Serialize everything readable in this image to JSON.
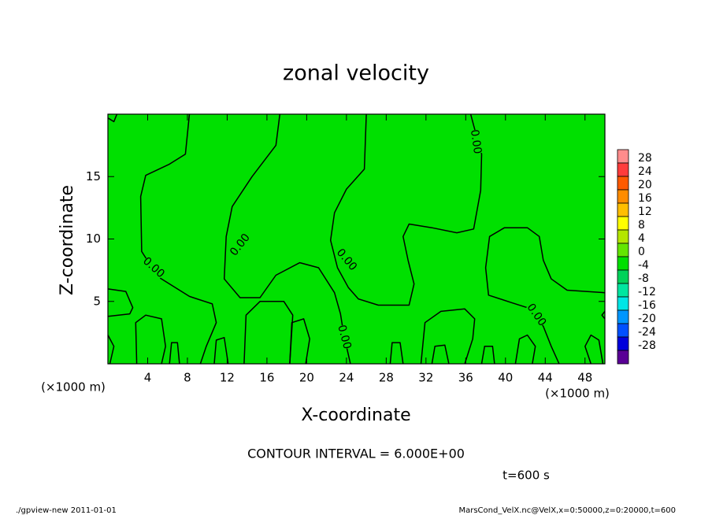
{
  "chart_data": {
    "type": "contour",
    "title": "zonal velocity",
    "xlabel": "X-coordinate",
    "ylabel": "Z-coordinate",
    "x_unit_labels": [
      "(×1000 m)",
      "(×1000 m)"
    ],
    "xlim": [
      0,
      50
    ],
    "xticks": [
      4,
      8,
      12,
      16,
      20,
      24,
      28,
      32,
      36,
      40,
      44,
      48
    ],
    "ylim": [
      0,
      20
    ],
    "yticks": [
      5,
      10,
      15
    ],
    "fill_color": "#00e000",
    "line_color": "#000000",
    "contours": [
      {
        "x": [
          8.2,
          7.8,
          6.2,
          3.8,
          3.3,
          3.4,
          5.0,
          8.2,
          10.5,
          10.9,
          9.9,
          9.3
        ],
        "y": [
          20,
          16.8,
          16.0,
          15.1,
          13.4,
          9.0,
          7.0,
          5.4,
          4.8,
          3.3,
          1.4,
          0
        ]
      },
      {
        "x": [
          17.3,
          16.9,
          14.5,
          12.5,
          11.9,
          11.7,
          13.3,
          15.3,
          16.9,
          19.3,
          21.2,
          22.8,
          23.4,
          23.6,
          24.0,
          24.4
        ],
        "y": [
          20,
          17.5,
          15.0,
          12.6,
          10.2,
          6.8,
          5.3,
          5.3,
          7.1,
          8.1,
          7.7,
          5.7,
          4.0,
          3.0,
          1.4,
          0
        ]
      },
      {
        "x": [
          26.0,
          25.8,
          24.0,
          22.8,
          22.4,
          23.1,
          24.2,
          25.2,
          27.2,
          30.3,
          30.8,
          30.2,
          29.7,
          30.3,
          32.6,
          35.1,
          36.8,
          37.5,
          37.6,
          36.8,
          36.5
        ],
        "y": [
          20,
          15.6,
          14.0,
          12.1,
          9.9,
          7.7,
          6.1,
          5.2,
          4.7,
          4.7,
          6.4,
          8.3,
          10.2,
          11.2,
          10.9,
          10.5,
          10.8,
          13.9,
          16.8,
          19.1,
          20
        ]
      },
      {
        "x": [
          50,
          46.2,
          44.6,
          43.8,
          43.4,
          42.2,
          39.9,
          38.4,
          38.0,
          38.3,
          40.6,
          42.6,
          43.8,
          44.6,
          45.4
        ],
        "y": [
          5.7,
          5.9,
          6.8,
          8.3,
          10.2,
          10.9,
          10.9,
          10.2,
          7.7,
          5.5,
          4.9,
          4.4,
          3.0,
          1.4,
          0
        ]
      },
      {
        "x": [
          0,
          1.8,
          2.5,
          2.2,
          0
        ],
        "y": [
          6.0,
          5.8,
          4.5,
          4.0,
          3.8
        ]
      },
      {
        "x": [
          2.9,
          2.8,
          3.8,
          5.4,
          5.8,
          5.4
        ],
        "y": [
          0,
          3.3,
          3.9,
          3.6,
          1.4,
          0
        ]
      },
      {
        "x": [
          13.7,
          13.9,
          15.3,
          17.7,
          18.6,
          18.3
        ],
        "y": [
          0,
          3.9,
          5.0,
          5.0,
          3.9,
          0
        ]
      },
      {
        "x": [
          18.3,
          18.5,
          19.7,
          20.3,
          19.9
        ],
        "y": [
          0,
          3.3,
          3.6,
          2.0,
          0
        ]
      },
      {
        "x": [
          31.5,
          31.9,
          33.5,
          35.9,
          36.9,
          36.7,
          35.9
        ],
        "y": [
          0,
          3.3,
          4.2,
          4.4,
          3.6,
          2.0,
          0
        ]
      },
      {
        "x": [
          10.7,
          10.9,
          11.7,
          12.1
        ],
        "y": [
          0,
          1.9,
          2.1,
          0
        ]
      },
      {
        "x": [
          48.6,
          48.0,
          48.6,
          49.4,
          49.8
        ],
        "y": [
          0,
          1.4,
          2.3,
          1.9,
          0
        ]
      },
      {
        "x": [
          0,
          0.6,
          0.2
        ],
        "y": [
          2.3,
          1.4,
          0
        ]
      },
      {
        "x": [
          6.2,
          6.4,
          7.0,
          7.2
        ],
        "y": [
          0,
          1.7,
          1.7,
          0
        ]
      },
      {
        "x": [
          28.4,
          28.6,
          29.4,
          29.7
        ],
        "y": [
          0,
          1.7,
          1.7,
          0
        ]
      },
      {
        "x": [
          32.6,
          32.9,
          33.9,
          34.3
        ],
        "y": [
          0,
          1.4,
          1.5,
          0
        ]
      },
      {
        "x": [
          37.6,
          37.9,
          38.7,
          38.9
        ],
        "y": [
          0,
          1.4,
          1.4,
          0
        ]
      },
      {
        "x": [
          41.0,
          41.4,
          42.2,
          43.0,
          42.7
        ],
        "y": [
          0,
          2.0,
          2.3,
          1.4,
          0
        ]
      },
      {
        "x": [
          0,
          0.6,
          0.9
        ],
        "y": [
          19.7,
          19.4,
          20
        ]
      },
      {
        "x": [
          50,
          49.7,
          50
        ],
        "y": [
          4.2,
          3.9,
          3.6
        ]
      }
    ],
    "contour_labels": [
      "0.00",
      "0.00",
      "0.00",
      "0.00",
      "0.00",
      "0.00"
    ],
    "colorbar": {
      "levels": [
        28,
        24,
        20,
        16,
        12,
        8,
        4,
        0,
        -4,
        -8,
        -12,
        -16,
        -20,
        -24,
        -28
      ],
      "colors": [
        "#ff8c8c",
        "#ff3c3c",
        "#ff5a00",
        "#ff8c00",
        "#ffbe00",
        "#ffff00",
        "#b4e600",
        "#64e600",
        "#00e000",
        "#00d25a",
        "#00e6a0",
        "#00e6e6",
        "#0096ff",
        "#0050ff",
        "#0000dc",
        "#5a0096"
      ]
    },
    "contour_interval": "CONTOUR INTERVAL = 6.000E+00",
    "time_label": "t=600 s",
    "footer_left": "./gpview-new  2011-01-01",
    "footer_right": "MarsCond_VelX.nc@VelX,x=0:50000,z=0:20000,t=600"
  }
}
